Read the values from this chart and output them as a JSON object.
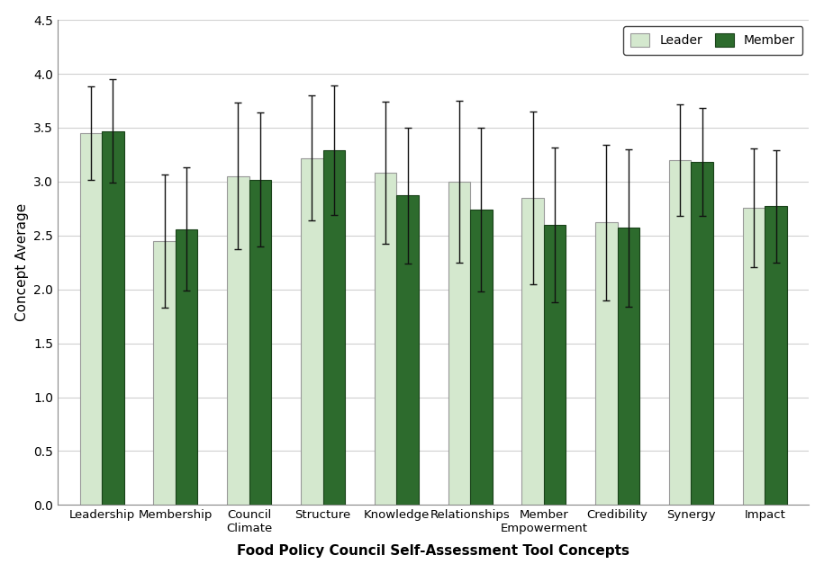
{
  "categories": [
    "Leadership",
    "Membership",
    "Council\nClimate",
    "Structure",
    "Knowledge",
    "Relationships",
    "Member\nEmpowerment",
    "Credibility",
    "Synergy",
    "Impact"
  ],
  "leader_means": [
    3.45,
    2.45,
    3.05,
    3.22,
    3.08,
    3.0,
    2.85,
    2.62,
    3.2,
    2.76
  ],
  "member_means": [
    3.47,
    2.56,
    3.02,
    3.29,
    2.87,
    2.74,
    2.6,
    2.57,
    3.18,
    2.77
  ],
  "leader_errors": [
    0.43,
    0.62,
    0.68,
    0.58,
    0.66,
    0.75,
    0.8,
    0.72,
    0.52,
    0.55
  ],
  "member_errors": [
    0.48,
    0.57,
    0.62,
    0.6,
    0.63,
    0.76,
    0.72,
    0.73,
    0.5,
    0.52
  ],
  "leader_color": "#d4e8ce",
  "member_color": "#2d6b2d",
  "leader_edge_color": "#999999",
  "member_edge_color": "#1a421a",
  "bar_width": 0.3,
  "title": "Food Policy Council Self-Assessment Tool Concepts",
  "ylabel": "Concept Average",
  "ylim": [
    0,
    4.5
  ],
  "yticks": [
    0,
    0.5,
    1.0,
    1.5,
    2.0,
    2.5,
    3.0,
    3.5,
    4.0,
    4.5
  ],
  "legend_labels": [
    "Leader",
    "Member"
  ],
  "error_color": "#111111",
  "capsize": 3,
  "background_color": "#ffffff",
  "grid_color": "#d0d0d0"
}
